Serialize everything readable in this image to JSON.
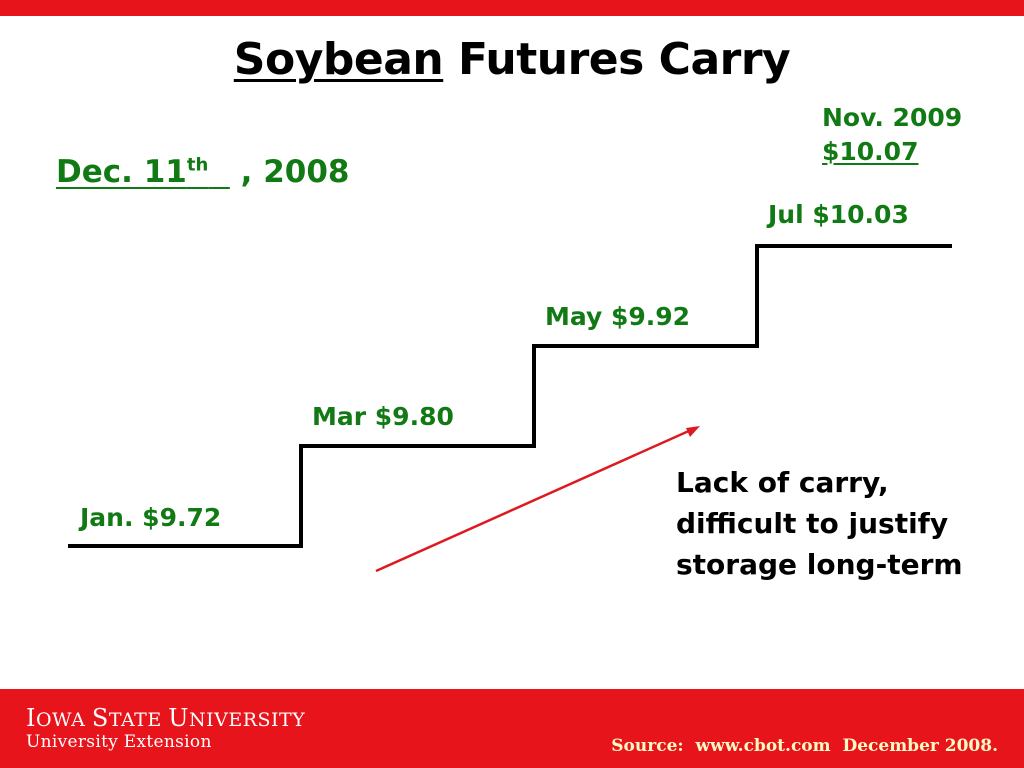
{
  "title": {
    "emphasis": "Soybean",
    "rest": " Futures Carry"
  },
  "date": {
    "main": "Dec. 11",
    "superscript": "th",
    "rest": " , 2008"
  },
  "steps": [
    {
      "label": "Jan. $9.72"
    },
    {
      "label": "Mar $9.80"
    },
    {
      "label": "May $9.92"
    },
    {
      "label": "Jul $10.03"
    }
  ],
  "final": {
    "month": "Nov. 2009",
    "price": "$10.07"
  },
  "note": {
    "lines": [
      "Lack of carry,",
      "difficult to justify",
      "storage long-term"
    ]
  },
  "footer": {
    "logo_first": [
      "I",
      "OWA ",
      "S",
      "TATE ",
      "U",
      "NIVERSITY"
    ],
    "logo_sub": "University Extension",
    "source": "Source:  www.cbot.com  December 2008."
  },
  "colors": {
    "accent_red": "#e8141c",
    "label_green": "#127a14",
    "arrow_red": "#dd1a20"
  }
}
